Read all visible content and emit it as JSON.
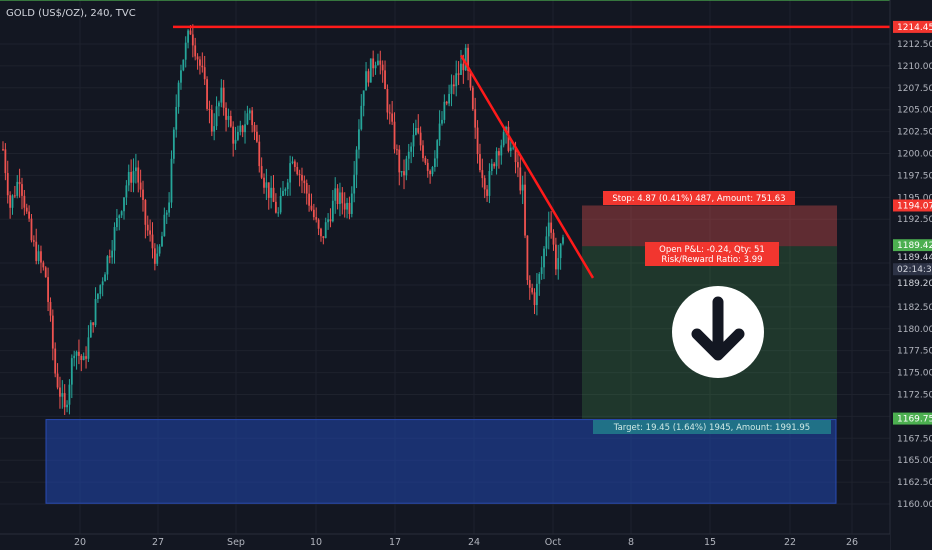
{
  "chart_data": {
    "type": "candlestick",
    "title": "GOLD (US$/OZ), 240, TVC",
    "ylim": [
      1159.0,
      1215.5
    ],
    "y_ticks": [
      1160.0,
      1162.5,
      1165.0,
      1167.5,
      1170.0,
      1172.5,
      1175.0,
      1177.5,
      1180.0,
      1182.5,
      1185.0,
      1187.5,
      1192.5,
      1195.0,
      1197.5,
      1200.0,
      1202.5,
      1205.0,
      1207.5,
      1210.0,
      1212.5
    ],
    "x_ticks": [
      "20",
      "27",
      "Sep",
      "10",
      "17",
      "24",
      "Oct",
      "8",
      "15",
      "22",
      "26"
    ],
    "ohlc_keypoints": [
      [
        0,
        1200.5
      ],
      [
        3,
        1194.0
      ],
      [
        7,
        1197.5
      ],
      [
        12,
        1190.0
      ],
      [
        18,
        1186.0
      ],
      [
        22,
        1175.0
      ],
      [
        26,
        1170.5
      ],
      [
        30,
        1178.0
      ],
      [
        34,
        1176.0
      ],
      [
        40,
        1184.0
      ],
      [
        46,
        1190.0
      ],
      [
        52,
        1196.5
      ],
      [
        56,
        1198.5
      ],
      [
        60,
        1192.0
      ],
      [
        65,
        1187.5
      ],
      [
        70,
        1195.0
      ],
      [
        74,
        1209.0
      ],
      [
        79,
        1214.2
      ],
      [
        84,
        1209.0
      ],
      [
        88,
        1203.0
      ],
      [
        92,
        1206.5
      ],
      [
        98,
        1201.0
      ],
      [
        104,
        1205.0
      ],
      [
        110,
        1197.0
      ],
      [
        116,
        1193.0
      ],
      [
        122,
        1200.0
      ],
      [
        128,
        1195.5
      ],
      [
        134,
        1190.0
      ],
      [
        140,
        1195.0
      ],
      [
        146,
        1194.0
      ],
      [
        152,
        1208.0
      ],
      [
        158,
        1211.5
      ],
      [
        163,
        1204.0
      ],
      [
        168,
        1197.0
      ],
      [
        174,
        1202.5
      ],
      [
        180,
        1198.0
      ],
      [
        186,
        1205.0
      ],
      [
        190,
        1208.0
      ],
      [
        195,
        1211.0
      ],
      [
        200,
        1200.0
      ],
      [
        204,
        1196.0
      ],
      [
        208,
        1200.5
      ],
      [
        212,
        1202.0
      ],
      [
        216,
        1199.0
      ],
      [
        219,
        1195.5
      ],
      [
        221,
        1185.0
      ],
      [
        224,
        1183.5
      ],
      [
        227,
        1187.0
      ],
      [
        230,
        1193.0
      ],
      [
        233,
        1187.5
      ],
      [
        236,
        1189.4
      ]
    ],
    "current_price": 1189.42,
    "annotations": {
      "resistance": 1214.45,
      "stop_price": 1194.07,
      "entry_price": 1189.42,
      "entry_price_2": 1189.44,
      "price_1189_20": 1189.2,
      "target_price": 1169.75,
      "countdown": "02:14:32",
      "stop_label": "Stop: 4.87 (0.41%) 487, Amount: 751.63",
      "pnl_label": "Open P&L: -0.24, Qty: 51",
      "rr_label": "Risk/Reward Ratio: 3.99",
      "target_label": "Target: 19.45 (1.64%) 1945, Amount: 1991.95"
    }
  },
  "colors": {
    "background": "#131722",
    "grid": "#1e222d",
    "up": "#26a69a",
    "down": "#ef5350",
    "trendline": "#ff1a1a",
    "price_line": "#4caf50",
    "stop_zone": "rgba(239,83,80,0.35)",
    "target_zone": "rgba(76,175,80,0.22)",
    "support_zone": "rgba(33,71,176,0.55)"
  },
  "icons": {
    "direction": "arrow-down-circle-icon"
  }
}
